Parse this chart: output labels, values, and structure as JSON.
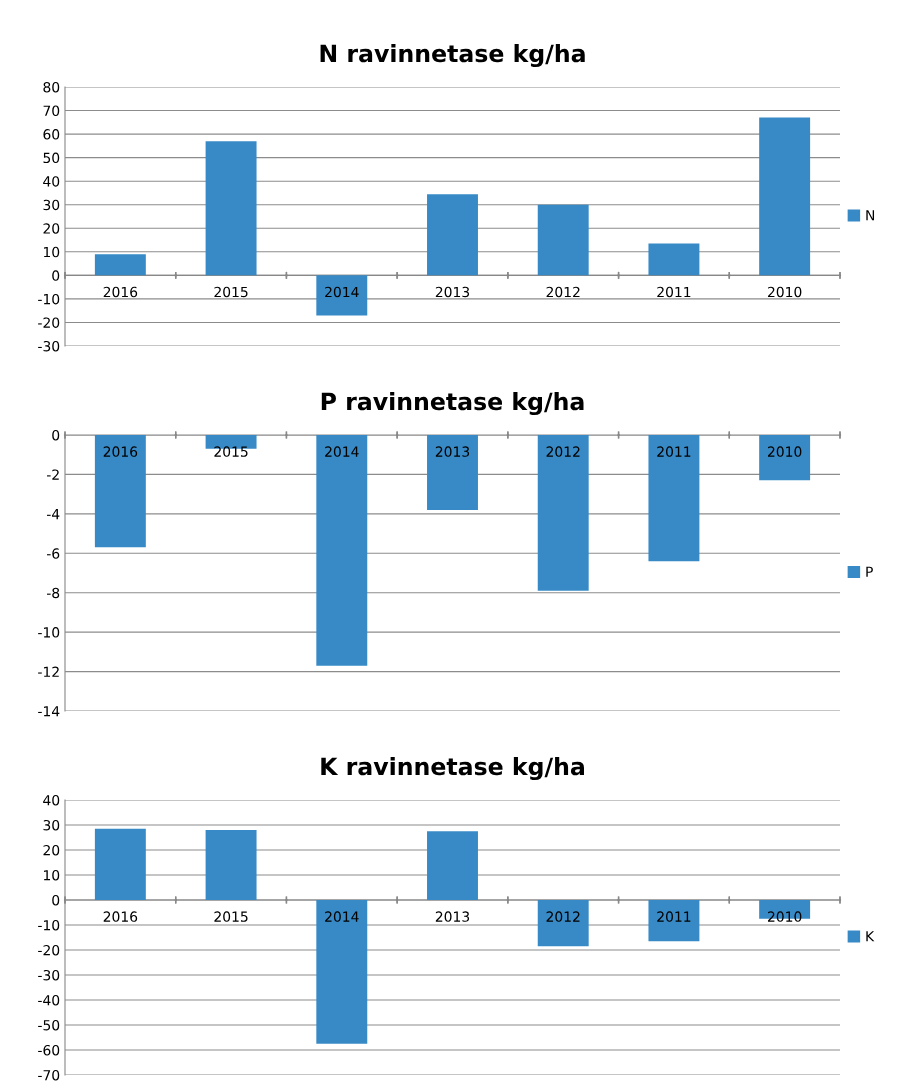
{
  "chart_data": [
    {
      "type": "bar",
      "title": "N ravinnetase kg/ha",
      "categories": [
        "2016",
        "2015",
        "2014",
        "2013",
        "2012",
        "2011",
        "2010"
      ],
      "series": [
        {
          "name": "N",
          "color": "#378ac6",
          "values": [
            9,
            57,
            -17,
            34.5,
            30,
            13.5,
            67
          ]
        }
      ],
      "ylim": [
        -30,
        80
      ],
      "yticks": [
        -30,
        -20,
        -10,
        0,
        10,
        20,
        30,
        40,
        50,
        60,
        70,
        80
      ],
      "grid": "y",
      "legend": "right"
    },
    {
      "type": "bar",
      "title": "P ravinnetase kg/ha",
      "categories": [
        "2016",
        "2015",
        "2014",
        "2013",
        "2012",
        "2011",
        "2010"
      ],
      "series": [
        {
          "name": "P",
          "color": "#378ac6",
          "values": [
            -5.7,
            -0.7,
            -11.7,
            -3.8,
            -7.9,
            -6.4,
            -2.3
          ]
        }
      ],
      "ylim": [
        -14,
        0
      ],
      "yticks": [
        -14,
        -12,
        -10,
        -8,
        -6,
        -4,
        -2,
        0
      ],
      "grid": "y",
      "legend": "right"
    },
    {
      "type": "bar",
      "title": "K ravinnetase kg/ha",
      "categories": [
        "2016",
        "2015",
        "2014",
        "2013",
        "2012",
        "2011",
        "2010"
      ],
      "series": [
        {
          "name": "K",
          "color": "#378ac6",
          "values": [
            28.5,
            28,
            -57.5,
            27.5,
            -18.5,
            -16.5,
            -7.5
          ]
        }
      ],
      "ylim": [
        -70,
        40
      ],
      "yticks": [
        -70,
        -60,
        -50,
        -40,
        -30,
        -20,
        -10,
        0,
        10,
        20,
        30,
        40
      ],
      "grid": "y",
      "legend": "right"
    }
  ]
}
